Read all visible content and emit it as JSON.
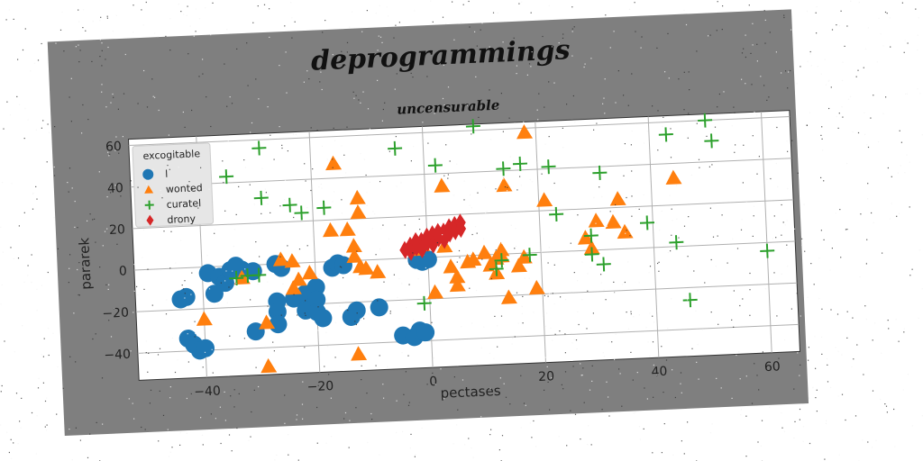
{
  "chart_data": {
    "type": "scatter",
    "title": "deprogrammings",
    "subtitle": "uncensurable",
    "xlabel": "pectases",
    "ylabel": "pararek",
    "xlim": [
      -52,
      65
    ],
    "ylim": [
      -53,
      63
    ],
    "xticks": [
      -40,
      -20,
      0,
      20,
      40,
      60
    ],
    "yticks": [
      -40,
      -20,
      0,
      20,
      40,
      60
    ],
    "xtick_labels": [
      "−40",
      "−20",
      "0",
      "20",
      "40",
      "60"
    ],
    "ytick_labels": [
      "−40",
      "−20",
      "0",
      "20",
      "40",
      "60"
    ],
    "grid": true,
    "legend": {
      "title": "excogitable",
      "placement": "top-left"
    },
    "series": [
      {
        "name": "l",
        "marker": "circle",
        "color": "#1f77b4",
        "points": [
          [
            -39,
            -3
          ],
          [
            -37,
            -5
          ],
          [
            -36,
            -8
          ],
          [
            -38,
            -13
          ],
          [
            -35,
            -2
          ],
          [
            -33,
            -2
          ],
          [
            -34,
            0
          ],
          [
            -31,
            -3
          ],
          [
            -44,
            -15
          ],
          [
            -43,
            -14
          ],
          [
            -43,
            -34
          ],
          [
            -42,
            -37
          ],
          [
            -41,
            -40
          ],
          [
            -40,
            -39
          ],
          [
            -31,
            -32
          ],
          [
            -27,
            0
          ],
          [
            -26,
            -2
          ],
          [
            -24,
            -17
          ],
          [
            -22,
            -15
          ],
          [
            -22,
            -23
          ],
          [
            -20,
            -12
          ],
          [
            -20,
            -18
          ],
          [
            -20,
            -24
          ],
          [
            -19,
            -27
          ],
          [
            -17,
            -3
          ],
          [
            -16,
            -1
          ],
          [
            -15,
            -2
          ],
          [
            -14,
            -27
          ],
          [
            -13,
            -24
          ],
          [
            -9,
            -23
          ],
          [
            -27,
            -18
          ],
          [
            -27,
            -23
          ],
          [
            -27,
            -29
          ],
          [
            -5,
            -37
          ],
          [
            -3,
            -38
          ],
          [
            -2,
            -35
          ],
          [
            -1,
            -36
          ],
          [
            -2,
            -1
          ],
          [
            -1,
            -2
          ],
          [
            -1,
            1
          ],
          [
            0,
            -1
          ]
        ]
      },
      {
        "name": "wonted",
        "marker": "triangle",
        "color": "#ff7f0e",
        "points": [
          [
            -40,
            -25
          ],
          [
            -33,
            -6
          ],
          [
            -29,
            -28
          ],
          [
            -29,
            -49
          ],
          [
            -26,
            2
          ],
          [
            -24,
            1
          ],
          [
            -23,
            -8
          ],
          [
            -24,
            -12
          ],
          [
            -21,
            -5
          ],
          [
            -17,
            15
          ],
          [
            -16,
            47
          ],
          [
            -14,
            15
          ],
          [
            -13,
            7
          ],
          [
            -13,
            2
          ],
          [
            -12,
            30
          ],
          [
            -12,
            23
          ],
          [
            -12,
            -3
          ],
          [
            -13,
            -45
          ],
          [
            -11,
            -4
          ],
          [
            -9,
            -6
          ],
          [
            -2,
            4
          ],
          [
            -1,
            6
          ],
          [
            1,
            -17
          ],
          [
            3,
            34
          ],
          [
            3,
            5
          ],
          [
            4,
            -5
          ],
          [
            5,
            -10
          ],
          [
            5,
            -14
          ],
          [
            7,
            -3
          ],
          [
            8,
            -2
          ],
          [
            10,
            1
          ],
          [
            11,
            -5
          ],
          [
            12,
            -9
          ],
          [
            12,
            -2
          ],
          [
            13,
            2
          ],
          [
            13,
            -1
          ],
          [
            14,
            -21
          ],
          [
            14,
            33
          ],
          [
            16,
            -6
          ],
          [
            17,
            -2
          ],
          [
            18,
            58
          ],
          [
            19,
            -17
          ],
          [
            21,
            25
          ],
          [
            28,
            6
          ],
          [
            29,
            1
          ],
          [
            30,
            14
          ],
          [
            33,
            13
          ],
          [
            34,
            24
          ],
          [
            35,
            8
          ],
          [
            44,
            33
          ]
        ]
      },
      {
        "name": "curatel",
        "marker": "plus",
        "color": "#2ca02c",
        "points": [
          [
            -35,
            43
          ],
          [
            -29,
            56
          ],
          [
            -29,
            32
          ],
          [
            -34,
            -6
          ],
          [
            -32,
            -5
          ],
          [
            -30,
            -5
          ],
          [
            -24,
            28
          ],
          [
            -22,
            24
          ],
          [
            -18,
            26
          ],
          [
            -5,
            53
          ],
          [
            2,
            44
          ],
          [
            9,
            62
          ],
          [
            13,
            -3
          ],
          [
            12,
            -7
          ],
          [
            14,
            41
          ],
          [
            17,
            43
          ],
          [
            18,
            -1
          ],
          [
            22,
            41
          ],
          [
            23,
            18
          ],
          [
            29,
            7
          ],
          [
            29,
            -2
          ],
          [
            31,
            37
          ],
          [
            31,
            -7
          ],
          [
            39,
            12
          ],
          [
            43,
            54
          ],
          [
            44,
            2
          ],
          [
            46,
            -26
          ],
          [
            50,
            60
          ],
          [
            51,
            50
          ],
          [
            60,
            -4
          ],
          [
            -1,
            -22
          ]
        ]
      },
      {
        "name": "drony",
        "marker": "diamond",
        "color": "#d62728",
        "points": [
          [
            -4,
            4
          ],
          [
            -3,
            6
          ],
          [
            -2,
            8
          ],
          [
            -1,
            8
          ],
          [
            0,
            10
          ],
          [
            1,
            11
          ],
          [
            2,
            12
          ],
          [
            3,
            12
          ],
          [
            4,
            14
          ],
          [
            5,
            15
          ],
          [
            6,
            16
          ],
          [
            -3,
            3
          ],
          [
            0,
            7
          ],
          [
            2,
            9
          ],
          [
            4,
            11
          ],
          [
            5,
            12
          ],
          [
            6,
            13
          ],
          [
            -1,
            4
          ],
          [
            1,
            6
          ],
          [
            3,
            8
          ],
          [
            -2,
            5
          ]
        ]
      }
    ]
  }
}
